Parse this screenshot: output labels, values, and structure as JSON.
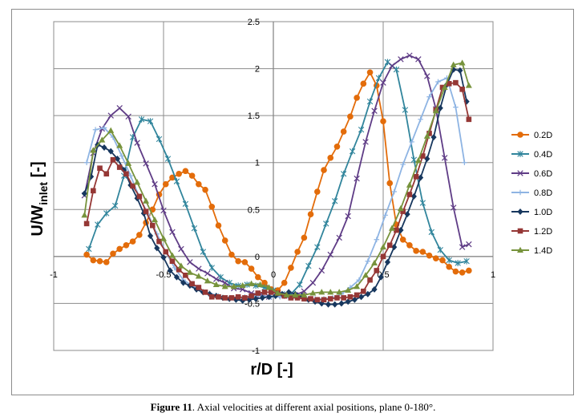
{
  "chart_data": {
    "type": "line",
    "title": "",
    "xlabel": "r/D [-]",
    "ylabel": {
      "main": "U/W",
      "sub": "inlet",
      "unit": " [-]"
    },
    "xlim": [
      -1,
      1
    ],
    "ylim": [
      -1,
      2.5
    ],
    "xticks": [
      "-1",
      "-0.5",
      "0",
      "0.5",
      "1"
    ],
    "yticks": [
      "-1",
      "-0.5",
      "0",
      "0.5",
      "1",
      "1.5",
      "2",
      "2.5"
    ],
    "xtick_values": [
      -1,
      -0.5,
      0,
      0.5,
      1
    ],
    "ytick_values": [
      -1,
      -0.5,
      0,
      0.5,
      1,
      1.5,
      2,
      2.5
    ],
    "grid": true,
    "legend_position": "right",
    "series": [
      {
        "name": "0.2D",
        "color": "#e36c0a",
        "marker": "circle",
        "x": [
          -0.85,
          -0.82,
          -0.79,
          -0.76,
          -0.73,
          -0.7,
          -0.67,
          -0.64,
          -0.61,
          -0.58,
          -0.55,
          -0.52,
          -0.49,
          -0.46,
          -0.43,
          -0.4,
          -0.37,
          -0.34,
          -0.31,
          -0.28,
          -0.25,
          -0.22,
          -0.19,
          -0.16,
          -0.13,
          -0.1,
          -0.07,
          -0.04,
          -0.01,
          0.02,
          0.05,
          0.08,
          0.11,
          0.14,
          0.17,
          0.2,
          0.23,
          0.26,
          0.29,
          0.32,
          0.35,
          0.38,
          0.41,
          0.44,
          0.47,
          0.5,
          0.53,
          0.56,
          0.59,
          0.62,
          0.65,
          0.68,
          0.71,
          0.74,
          0.77,
          0.8,
          0.83,
          0.86,
          0.89
        ],
        "y": [
          0.02,
          -0.04,
          -0.05,
          -0.06,
          0.03,
          0.08,
          0.12,
          0.16,
          0.23,
          0.36,
          0.5,
          0.66,
          0.77,
          0.84,
          0.88,
          0.91,
          0.86,
          0.77,
          0.71,
          0.53,
          0.33,
          0.17,
          0.02,
          -0.05,
          -0.06,
          -0.13,
          -0.22,
          -0.28,
          -0.35,
          -0.36,
          -0.28,
          -0.12,
          0.05,
          0.2,
          0.45,
          0.69,
          0.92,
          1.05,
          1.17,
          1.33,
          1.49,
          1.69,
          1.84,
          1.96,
          1.82,
          1.44,
          0.78,
          0.34,
          0.18,
          0.12,
          0.06,
          0.05,
          0.01,
          -0.02,
          -0.04,
          -0.11,
          -0.16,
          -0.17,
          -0.15
        ]
      },
      {
        "name": "0.4D",
        "color": "#31859c",
        "marker": "star",
        "x": [
          -0.84,
          -0.8,
          -0.76,
          -0.72,
          -0.68,
          -0.64,
          -0.6,
          -0.56,
          -0.52,
          -0.48,
          -0.44,
          -0.4,
          -0.36,
          -0.32,
          -0.28,
          -0.24,
          -0.2,
          -0.16,
          -0.12,
          -0.08,
          -0.04,
          0.0,
          0.04,
          0.08,
          0.12,
          0.16,
          0.2,
          0.24,
          0.28,
          0.32,
          0.36,
          0.4,
          0.44,
          0.48,
          0.52,
          0.56,
          0.6,
          0.64,
          0.68,
          0.72,
          0.76,
          0.8,
          0.84,
          0.88
        ],
        "y": [
          0.08,
          0.34,
          0.46,
          0.54,
          0.86,
          1.27,
          1.46,
          1.44,
          1.25,
          1.04,
          0.8,
          0.56,
          0.3,
          0.05,
          -0.12,
          -0.22,
          -0.28,
          -0.31,
          -0.3,
          -0.31,
          -0.33,
          -0.36,
          -0.4,
          -0.4,
          -0.3,
          -0.1,
          0.1,
          0.35,
          0.59,
          0.88,
          1.12,
          1.35,
          1.65,
          1.9,
          2.07,
          1.99,
          1.56,
          1.03,
          0.57,
          0.26,
          0.07,
          -0.04,
          -0.07,
          -0.05
        ]
      },
      {
        "name": "0.6D",
        "color": "#5f3c86",
        "marker": "x",
        "x": [
          -0.86,
          -0.82,
          -0.78,
          -0.74,
          -0.7,
          -0.66,
          -0.62,
          -0.58,
          -0.54,
          -0.5,
          -0.46,
          -0.42,
          -0.38,
          -0.34,
          -0.3,
          -0.26,
          -0.22,
          -0.18,
          -0.14,
          -0.1,
          -0.06,
          -0.02,
          0.02,
          0.06,
          0.1,
          0.14,
          0.18,
          0.22,
          0.26,
          0.3,
          0.34,
          0.38,
          0.42,
          0.46,
          0.5,
          0.54,
          0.58,
          0.62,
          0.66,
          0.7,
          0.74,
          0.78,
          0.82,
          0.86,
          0.89
        ],
        "y": [
          0.65,
          1.1,
          1.36,
          1.5,
          1.58,
          1.49,
          1.21,
          0.99,
          0.77,
          0.49,
          0.26,
          0.08,
          -0.06,
          -0.13,
          -0.18,
          -0.24,
          -0.28,
          -0.34,
          -0.35,
          -0.39,
          -0.41,
          -0.43,
          -0.42,
          -0.42,
          -0.41,
          -0.37,
          -0.28,
          -0.15,
          0.02,
          0.2,
          0.43,
          0.83,
          1.22,
          1.55,
          1.85,
          2.03,
          2.1,
          2.14,
          2.1,
          1.92,
          1.57,
          1.05,
          0.52,
          0.1,
          0.13
        ]
      },
      {
        "name": "0.8D",
        "color": "#8eb4e3",
        "marker": "plus",
        "x": [
          -0.85,
          -0.81,
          -0.77,
          -0.73,
          -0.69,
          -0.65,
          -0.61,
          -0.57,
          -0.53,
          -0.49,
          -0.45,
          -0.41,
          -0.37,
          -0.33,
          -0.29,
          -0.25,
          -0.21,
          -0.17,
          -0.13,
          -0.09,
          -0.05,
          -0.01,
          0.03,
          0.07,
          0.11,
          0.15,
          0.19,
          0.23,
          0.27,
          0.31,
          0.35,
          0.39,
          0.43,
          0.47,
          0.51,
          0.55,
          0.59,
          0.63,
          0.67,
          0.71,
          0.75,
          0.79,
          0.83,
          0.87
        ],
        "y": [
          1.0,
          1.35,
          1.37,
          1.27,
          1.07,
          0.86,
          0.63,
          0.45,
          0.24,
          0.05,
          -0.12,
          -0.25,
          -0.31,
          -0.36,
          -0.39,
          -0.42,
          -0.44,
          -0.44,
          -0.43,
          -0.42,
          -0.42,
          -0.43,
          -0.43,
          -0.44,
          -0.44,
          -0.45,
          -0.45,
          -0.45,
          -0.44,
          -0.4,
          -0.33,
          -0.25,
          -0.05,
          0.18,
          0.44,
          0.69,
          0.98,
          1.22,
          1.46,
          1.7,
          1.86,
          1.9,
          1.59,
          1.0
        ]
      },
      {
        "name": "1.0D",
        "color": "#17375e",
        "marker": "diamond",
        "x": [
          -0.86,
          -0.83,
          -0.8,
          -0.77,
          -0.74,
          -0.71,
          -0.68,
          -0.65,
          -0.62,
          -0.59,
          -0.56,
          -0.53,
          -0.5,
          -0.47,
          -0.44,
          -0.41,
          -0.38,
          -0.35,
          -0.32,
          -0.29,
          -0.26,
          -0.23,
          -0.2,
          -0.17,
          -0.14,
          -0.11,
          -0.08,
          -0.05,
          -0.02,
          0.01,
          0.04,
          0.07,
          0.1,
          0.13,
          0.16,
          0.19,
          0.22,
          0.25,
          0.28,
          0.31,
          0.34,
          0.37,
          0.4,
          0.43,
          0.46,
          0.49,
          0.52,
          0.55,
          0.58,
          0.61,
          0.64,
          0.67,
          0.7,
          0.73,
          0.76,
          0.79,
          0.82,
          0.85,
          0.88
        ],
        "y": [
          0.67,
          0.85,
          1.19,
          1.16,
          1.12,
          1.04,
          0.92,
          0.76,
          0.62,
          0.46,
          0.22,
          0.09,
          -0.01,
          -0.15,
          -0.22,
          -0.28,
          -0.31,
          -0.35,
          -0.38,
          -0.4,
          -0.42,
          -0.44,
          -0.45,
          -0.46,
          -0.47,
          -0.46,
          -0.45,
          -0.44,
          -0.43,
          -0.42,
          -0.4,
          -0.38,
          -0.4,
          -0.42,
          -0.46,
          -0.48,
          -0.5,
          -0.51,
          -0.51,
          -0.5,
          -0.48,
          -0.46,
          -0.43,
          -0.4,
          -0.35,
          -0.22,
          -0.06,
          0.1,
          0.28,
          0.45,
          0.64,
          0.84,
          1.04,
          1.27,
          1.58,
          1.83,
          1.99,
          1.98,
          1.65
        ]
      },
      {
        "name": "1.2D",
        "color": "#953735",
        "marker": "square",
        "x": [
          -0.85,
          -0.82,
          -0.79,
          -0.76,
          -0.73,
          -0.7,
          -0.67,
          -0.64,
          -0.61,
          -0.58,
          -0.55,
          -0.52,
          -0.49,
          -0.46,
          -0.43,
          -0.4,
          -0.37,
          -0.34,
          -0.31,
          -0.28,
          -0.25,
          -0.22,
          -0.19,
          -0.16,
          -0.13,
          -0.1,
          -0.07,
          -0.04,
          -0.01,
          0.02,
          0.05,
          0.08,
          0.11,
          0.14,
          0.17,
          0.2,
          0.23,
          0.26,
          0.29,
          0.32,
          0.35,
          0.38,
          0.41,
          0.44,
          0.47,
          0.5,
          0.53,
          0.56,
          0.59,
          0.62,
          0.65,
          0.68,
          0.71,
          0.74,
          0.77,
          0.8,
          0.83,
          0.86,
          0.89
        ],
        "y": [
          0.35,
          0.7,
          0.94,
          0.88,
          1.03,
          0.95,
          0.88,
          0.75,
          0.64,
          0.48,
          0.33,
          0.16,
          0.05,
          -0.05,
          -0.14,
          -0.2,
          -0.29,
          -0.33,
          -0.38,
          -0.43,
          -0.43,
          -0.44,
          -0.44,
          -0.43,
          -0.44,
          -0.42,
          -0.39,
          -0.38,
          -0.38,
          -0.39,
          -0.42,
          -0.44,
          -0.44,
          -0.45,
          -0.45,
          -0.46,
          -0.46,
          -0.45,
          -0.44,
          -0.44,
          -0.43,
          -0.41,
          -0.37,
          -0.25,
          -0.15,
          0.0,
          0.12,
          0.28,
          0.48,
          0.66,
          0.85,
          1.07,
          1.31,
          1.56,
          1.8,
          1.84,
          1.85,
          1.78,
          1.46
        ]
      },
      {
        "name": "1.4D",
        "color": "#77933c",
        "marker": "triangle",
        "x": [
          -0.86,
          -0.82,
          -0.78,
          -0.74,
          -0.7,
          -0.66,
          -0.62,
          -0.58,
          -0.54,
          -0.5,
          -0.46,
          -0.42,
          -0.38,
          -0.34,
          -0.3,
          -0.26,
          -0.22,
          -0.18,
          -0.14,
          -0.1,
          -0.06,
          -0.02,
          0.02,
          0.06,
          0.1,
          0.14,
          0.18,
          0.22,
          0.26,
          0.3,
          0.34,
          0.38,
          0.42,
          0.46,
          0.5,
          0.54,
          0.58,
          0.62,
          0.66,
          0.7,
          0.74,
          0.78,
          0.82,
          0.86,
          0.89
        ],
        "y": [
          0.44,
          1.13,
          1.24,
          1.34,
          1.18,
          0.99,
          0.79,
          0.59,
          0.39,
          0.19,
          0.01,
          -0.1,
          -0.17,
          -0.21,
          -0.26,
          -0.3,
          -0.32,
          -0.32,
          -0.31,
          -0.29,
          -0.3,
          -0.33,
          -0.39,
          -0.41,
          -0.41,
          -0.41,
          -0.39,
          -0.38,
          -0.38,
          -0.38,
          -0.36,
          -0.32,
          -0.2,
          -0.07,
          0.1,
          0.3,
          0.51,
          0.76,
          1.02,
          1.28,
          1.55,
          1.8,
          2.04,
          2.06,
          1.82
        ]
      }
    ]
  },
  "caption": {
    "label": "Figure 11",
    "text": ". Axial velocities at different axial positions, plane 0-180°."
  }
}
